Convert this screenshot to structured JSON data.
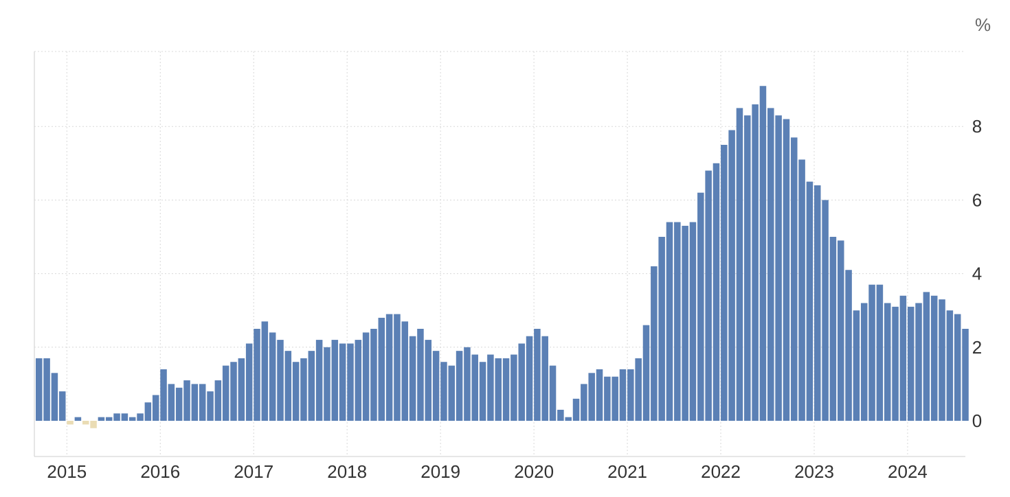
{
  "chart_data": {
    "type": "bar",
    "unit": "%",
    "x_start": "2014-09",
    "frequency": "monthly",
    "year_ticks": [
      "2015",
      "2016",
      "2017",
      "2018",
      "2019",
      "2020",
      "2021",
      "2022",
      "2023",
      "2024"
    ],
    "y_ticks": [
      "0",
      "2",
      "4",
      "6",
      "8"
    ],
    "ylim": [
      -1,
      10
    ],
    "grid": true,
    "values": [
      1.7,
      1.7,
      1.3,
      0.8,
      -0.1,
      0.1,
      -0.1,
      -0.2,
      0.1,
      0.1,
      0.2,
      0.2,
      0.1,
      0.2,
      0.5,
      0.7,
      1.4,
      1.0,
      0.9,
      1.1,
      1.0,
      1.0,
      0.8,
      1.1,
      1.5,
      1.6,
      1.7,
      2.1,
      2.5,
      2.7,
      2.4,
      2.2,
      1.9,
      1.6,
      1.7,
      1.9,
      2.2,
      2.0,
      2.2,
      2.1,
      2.1,
      2.2,
      2.4,
      2.5,
      2.8,
      2.9,
      2.9,
      2.7,
      2.3,
      2.5,
      2.2,
      1.9,
      1.6,
      1.5,
      1.9,
      2.0,
      1.8,
      1.6,
      1.8,
      1.7,
      1.7,
      1.8,
      2.1,
      2.3,
      2.5,
      2.3,
      1.5,
      0.3,
      0.1,
      0.6,
      1.0,
      1.3,
      1.4,
      1.2,
      1.2,
      1.4,
      1.4,
      1.7,
      2.6,
      4.2,
      5.0,
      5.4,
      5.4,
      5.3,
      5.4,
      6.2,
      6.8,
      7.0,
      7.5,
      7.9,
      8.5,
      8.3,
      8.6,
      9.1,
      8.5,
      8.3,
      8.2,
      7.7,
      7.1,
      6.5,
      6.4,
      6.0,
      5.0,
      4.9,
      4.1,
      3.0,
      3.2,
      3.7,
      3.7,
      3.2,
      3.1,
      3.4,
      3.1,
      3.2,
      3.5,
      3.4,
      3.3,
      3.0,
      2.9,
      2.5
    ],
    "colors": {
      "positive": "#5b80b5",
      "negative": "#eadcb4"
    }
  }
}
